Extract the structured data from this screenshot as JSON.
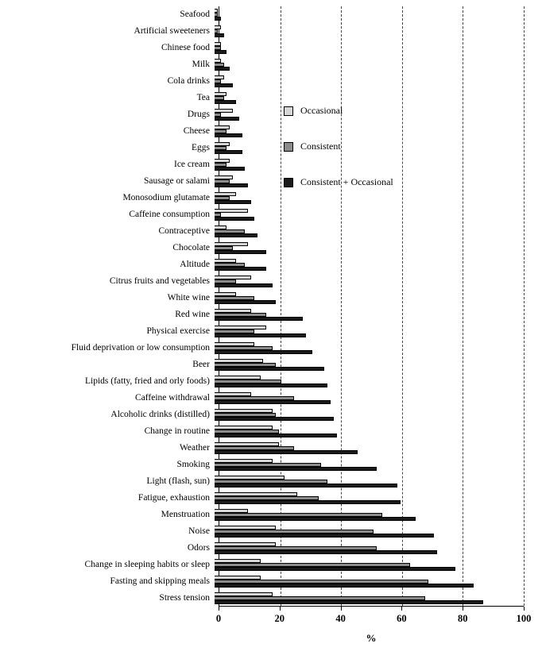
{
  "chart_data": {
    "type": "bar",
    "orientation": "horizontal",
    "title": "",
    "xlabel": "%",
    "xlim": [
      0,
      100
    ],
    "xticks": [
      0,
      20,
      40,
      60,
      80,
      100
    ],
    "grid": "vertical-dashed",
    "legend_position": "inside-upper-middle",
    "categories": [
      "Seafood",
      "Artificial sweeteners",
      "Chinese food",
      "Milk",
      "Cola drinks",
      "Tea",
      "Drugs",
      "Cheese",
      "Eggs",
      "Ice cream",
      "Sausage or salami",
      "Monosodium glutamate",
      "Caffeine consumption",
      "Contraceptive",
      "Chocolate",
      "Altitude",
      "Citrus fruits and vegetables",
      "White wine",
      "Red wine",
      "Physical exercise",
      "Fluid deprivation or low consumption",
      "Beer",
      "Lipids (fatty, fried and orly foods)",
      "Caffeine withdrawal",
      "Alcoholic drinks (distilled)",
      "Change in routine",
      "Weather",
      "Smoking",
      "Light (flash, sun)",
      "Fatigue, exhaustion",
      "Menstruation",
      "Noise",
      "Odors",
      "Change in sleeping habits or sleep",
      "Fasting and skipping meals",
      "Stress tension"
    ],
    "series": [
      {
        "name": "Occasional",
        "color": "#d6d6d6",
        "values": [
          1,
          2,
          2,
          2,
          3,
          4,
          6,
          5,
          5,
          5,
          6,
          7,
          11,
          4,
          11,
          7,
          12,
          7,
          12,
          17,
          13,
          16,
          15,
          12,
          19,
          19,
          21,
          19,
          23,
          27,
          11,
          20,
          20,
          15,
          15,
          19
        ]
      },
      {
        "name": "Consistent",
        "color": "#8c8c8c",
        "values": [
          1,
          1,
          2,
          3,
          2,
          3,
          2,
          4,
          4,
          4,
          5,
          5,
          2,
          10,
          6,
          10,
          7,
          13,
          17,
          13,
          19,
          20,
          22,
          26,
          20,
          21,
          26,
          35,
          37,
          34,
          55,
          52,
          53,
          64,
          70,
          69
        ]
      },
      {
        "name": "Consistent + Occasional",
        "color": "#1a1a1a",
        "values": [
          2,
          3,
          4,
          5,
          6,
          7,
          8,
          9,
          9,
          10,
          11,
          12,
          13,
          14,
          17,
          17,
          19,
          20,
          29,
          30,
          32,
          36,
          37,
          38,
          39,
          40,
          47,
          53,
          60,
          61,
          66,
          72,
          73,
          79,
          85,
          88
        ]
      }
    ]
  }
}
